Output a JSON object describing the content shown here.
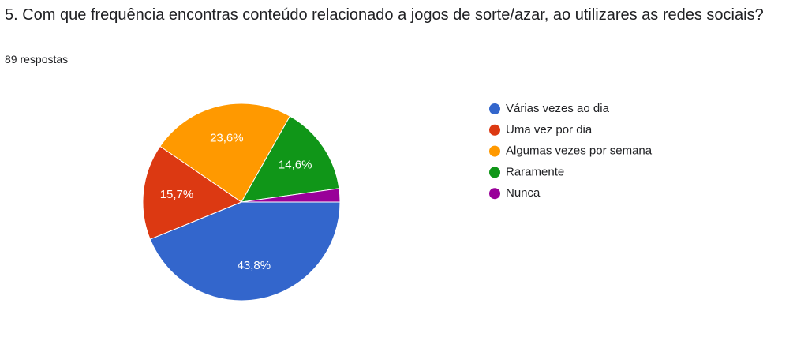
{
  "chart_data": {
    "type": "pie",
    "title": "5. Com que frequência encontras conteúdo relacionado a jogos de sorte/azar, ao utilizares as redes sociais?",
    "subtitle": "89 respostas",
    "categories": [
      "Várias vezes ao dia",
      "Uma vez por dia",
      "Algumas vezes por semana",
      "Raramente",
      "Nunca"
    ],
    "values": [
      43.8,
      15.7,
      23.6,
      14.6,
      2.2
    ],
    "value_labels": [
      "43,8%",
      "15,7%",
      "23,6%",
      "14,6%",
      null
    ],
    "colors": [
      "#3366cc",
      "#dc3912",
      "#ff9900",
      "#109618",
      "#990099"
    ],
    "legend": "right"
  }
}
